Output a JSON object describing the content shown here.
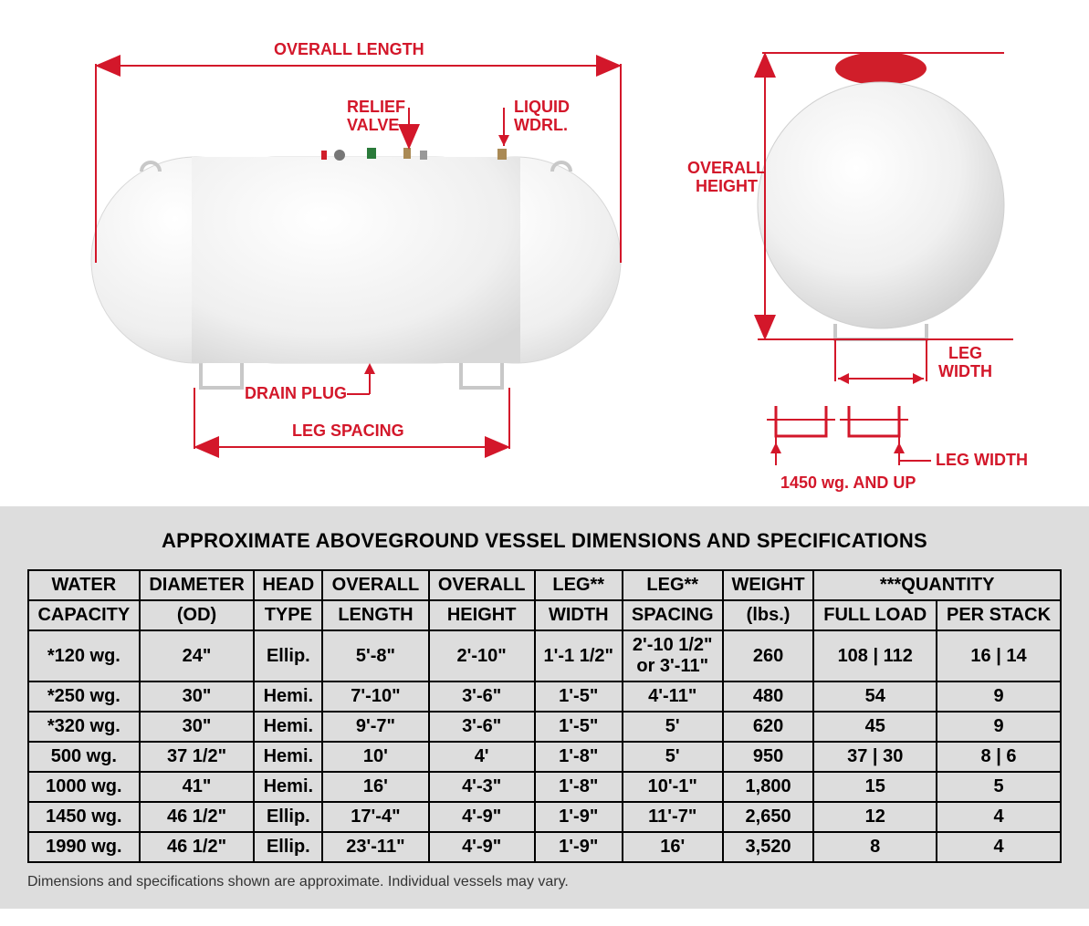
{
  "colors": {
    "accent": "#d3172a",
    "tank_fill": "#f4f4f4",
    "tank_edge": "#d8d8d8",
    "table_bg": "#dddddd",
    "border": "#000000",
    "valve_red": "#d01e2a",
    "valve_green": "#2a7a3a"
  },
  "diagram": {
    "labels": {
      "overall_length": "OVERALL LENGTH",
      "relief_valve": "RELIEF\nVALVE",
      "liquid_wdrl": "LIQUID\nWDRL.",
      "drain_plug": "DRAIN PLUG",
      "leg_spacing": "LEG SPACING",
      "overall_height": "OVERALL\nHEIGHT",
      "leg_width_top": "LEG\nWIDTH",
      "leg_width_bottom": "LEG WIDTH",
      "leg_width_note": "1450 wg. AND UP"
    }
  },
  "table": {
    "title": "APPROXIMATE ABOVEGROUND VESSEL DIMENSIONS AND SPECIFICATIONS",
    "headers_row1": [
      "WATER",
      "DIAMETER",
      "HEAD",
      "OVERALL",
      "OVERALL",
      "LEG**",
      "LEG**",
      "WEIGHT",
      "***QUANTITY"
    ],
    "headers_row2": [
      "CAPACITY",
      "(OD)",
      "TYPE",
      "LENGTH",
      "HEIGHT",
      "WIDTH",
      "SPACING",
      "(lbs.)",
      "FULL LOAD",
      "PER STACK"
    ],
    "rows": [
      [
        "*120 wg.",
        "24\"",
        "Ellip.",
        "5'-8\"",
        "2'-10\"",
        "1'-1 1/2\"",
        "2'-10 1/2\"\nor 3'-11\"",
        "260",
        "108 | 112",
        "16 | 14"
      ],
      [
        "*250 wg.",
        "30\"",
        "Hemi.",
        "7'-10\"",
        "3'-6\"",
        "1'-5\"",
        "4'-11\"",
        "480",
        "54",
        "9"
      ],
      [
        "*320 wg.",
        "30\"",
        "Hemi.",
        "9'-7\"",
        "3'-6\"",
        "1'-5\"",
        "5'",
        "620",
        "45",
        "9"
      ],
      [
        "500 wg.",
        "37 1/2\"",
        "Hemi.",
        "10'",
        "4'",
        "1'-8\"",
        "5'",
        "950",
        "37 | 30",
        "8 | 6"
      ],
      [
        "1000 wg.",
        "41\"",
        "Hemi.",
        "16'",
        "4'-3\"",
        "1'-8\"",
        "10'-1\"",
        "1,800",
        "15",
        "5"
      ],
      [
        "1450 wg.",
        "46 1/2\"",
        "Ellip.",
        "17'-4\"",
        "4'-9\"",
        "1'-9\"",
        "11'-7\"",
        "2,650",
        "12",
        "4"
      ],
      [
        "1990 wg.",
        "46 1/2\"",
        "Ellip.",
        "23'-11\"",
        "4'-9\"",
        "1'-9\"",
        "16'",
        "3,520",
        "8",
        "4"
      ]
    ],
    "footnote": "Dimensions and specifications shown are approximate. Individual vessels may vary."
  }
}
